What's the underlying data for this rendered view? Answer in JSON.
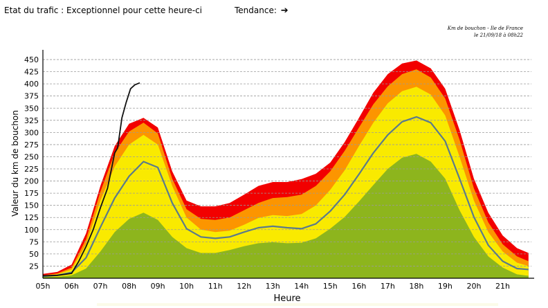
{
  "status": {
    "label": "Etat du trafic : Exceptionnel pour cette heure-ci"
  },
  "trend": {
    "label": "Tendance:",
    "icon": "right-arrow-icon"
  },
  "note": {
    "line1": "Km de bouchon - Ile de France",
    "line2": "le 21/09/18 à 08h22"
  },
  "chart_data": {
    "type": "area",
    "ylabel": "Valeur du  km de bouchon",
    "xlabel": "Heure",
    "ylim": [
      0,
      470
    ],
    "xlim": [
      5,
      22
    ],
    "yticks": [
      25,
      50,
      75,
      100,
      125,
      150,
      175,
      200,
      225,
      250,
      275,
      300,
      325,
      350,
      375,
      400,
      425,
      450
    ],
    "xticks": [
      {
        "x": 5,
        "label": "05h"
      },
      {
        "x": 6,
        "label": "06h"
      },
      {
        "x": 7,
        "label": "07h"
      },
      {
        "x": 8,
        "label": "08h"
      },
      {
        "x": 9,
        "label": "09h"
      },
      {
        "x": 10,
        "label": "10h"
      },
      {
        "x": 11,
        "label": "11h"
      },
      {
        "x": 12,
        "label": "12h"
      },
      {
        "x": 13,
        "label": "13h"
      },
      {
        "x": 14,
        "label": "14h"
      },
      {
        "x": 15,
        "label": "15h"
      },
      {
        "x": 16,
        "label": "16h"
      },
      {
        "x": 17,
        "label": "17h"
      },
      {
        "x": 18,
        "label": "18h"
      },
      {
        "x": 19,
        "label": "19h"
      },
      {
        "x": 20,
        "label": "20h"
      },
      {
        "x": 21,
        "label": "21h"
      }
    ],
    "grid": true,
    "colors": {
      "green": "#8db51d",
      "yellow": "#f9ea00",
      "orange": "#fc9500",
      "red": "#f20000",
      "average": "#5a7a8c",
      "today": "#111111",
      "grid": "#9a9a9a"
    },
    "x": [
      5,
      5.5,
      6,
      6.5,
      7,
      7.5,
      8,
      8.5,
      9,
      9.5,
      10,
      10.5,
      11,
      11.5,
      12,
      12.5,
      13,
      13.5,
      14,
      14.5,
      15,
      15.5,
      16,
      16.5,
      17,
      17.5,
      18,
      18.5,
      19,
      19.5,
      20,
      20.5,
      21,
      21.5,
      21.9
    ],
    "bands": {
      "green": [
        3,
        3,
        6,
        20,
        55,
        95,
        122,
        135,
        120,
        85,
        62,
        52,
        52,
        58,
        66,
        72,
        74,
        72,
        73,
        82,
        102,
        126,
        158,
        192,
        225,
        248,
        256,
        240,
        205,
        140,
        85,
        45,
        22,
        8,
        5
      ],
      "yellow": [
        5,
        8,
        18,
        70,
        160,
        230,
        275,
        295,
        275,
        190,
        125,
        100,
        95,
        98,
        110,
        124,
        130,
        128,
        132,
        150,
        182,
        222,
        272,
        320,
        360,
        385,
        394,
        378,
        335,
        250,
        160,
        95,
        55,
        32,
        25
      ],
      "orange": [
        6,
        10,
        22,
        80,
        178,
        258,
        302,
        320,
        298,
        205,
        142,
        122,
        120,
        125,
        140,
        155,
        165,
        167,
        172,
        190,
        220,
        262,
        310,
        358,
        395,
        420,
        430,
        413,
        370,
        285,
        185,
        115,
        70,
        45,
        35
      ],
      "red": [
        9,
        13,
        28,
        92,
        190,
        272,
        318,
        330,
        310,
        220,
        160,
        148,
        148,
        155,
        172,
        190,
        198,
        198,
        204,
        215,
        238,
        280,
        330,
        382,
        420,
        442,
        448,
        432,
        390,
        305,
        205,
        135,
        88,
        62,
        52
      ]
    },
    "series": [
      {
        "name": "",
        "color": "#5a7a8c",
        "x": [
          5,
          5.5,
          6,
          6.5,
          7,
          7.5,
          8,
          8.5,
          9,
          9.5,
          10,
          10.5,
          11,
          11.5,
          12,
          12.5,
          13,
          13.5,
          14,
          14.5,
          15,
          15.5,
          16,
          16.5,
          17,
          17.5,
          18,
          18.5,
          19,
          19.5,
          20,
          20.5,
          21,
          21.5,
          21.9
        ],
        "values": [
          4,
          6,
          12,
          42,
          105,
          165,
          210,
          240,
          228,
          155,
          102,
          85,
          82,
          85,
          95,
          104,
          107,
          104,
          102,
          112,
          138,
          172,
          214,
          258,
          295,
          322,
          332,
          320,
          282,
          205,
          126,
          68,
          35,
          20,
          18
        ]
      },
      {
        "name": "",
        "color": "#111111",
        "x": [
          5,
          5.5,
          6,
          6.25,
          6.5,
          6.75,
          7,
          7.25,
          7.5,
          7.6,
          7.75,
          7.9,
          8.05,
          8.2,
          8.37
        ],
        "values": [
          5,
          6,
          10,
          35,
          65,
          100,
          145,
          185,
          258,
          268,
          330,
          362,
          390,
          398,
          402
        ]
      }
    ]
  }
}
